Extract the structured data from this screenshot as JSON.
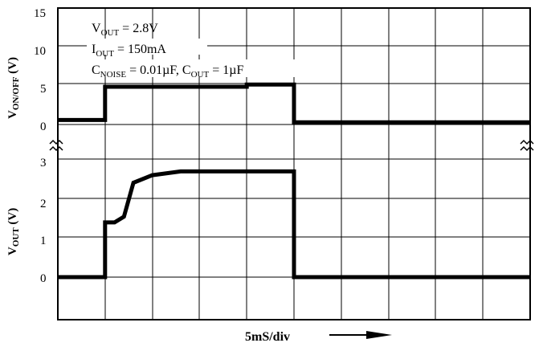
{
  "chart_data": [
    {
      "type": "line",
      "panel": "top",
      "title": "",
      "ylabel": {
        "main": "V",
        "sub": "ON/OFF",
        "unit": " (V)"
      },
      "yticks": [
        "15",
        "10",
        "5",
        "0"
      ],
      "ylim": [
        0,
        15
      ],
      "annotations": [
        {
          "main": "V",
          "sub": "OUT",
          "rest": " = 2.8V"
        },
        {
          "main": "I",
          "sub": "OUT",
          "rest": " = 150mA"
        },
        {
          "main": "C",
          "sub": "NOISE",
          "rest": " = 0.01µF, C",
          "sub2": "OUT",
          "rest2": " = 1µF"
        }
      ],
      "series": [
        {
          "x": [
            0,
            10,
            10,
            40,
            40,
            50,
            50,
            100
          ],
          "y": [
            0.6,
            0.6,
            5,
            5,
            5.3,
            5.3,
            0.3,
            0.3
          ]
        }
      ]
    },
    {
      "type": "line",
      "panel": "bottom",
      "title": "",
      "ylabel": {
        "main": "V",
        "sub": "OUT",
        "unit": " (V)"
      },
      "yticks": [
        "3",
        "2",
        "1",
        "0"
      ],
      "ylim": [
        -1,
        3.3
      ],
      "xlabel": "5mS/div",
      "series": [
        {
          "x": [
            0,
            10,
            10,
            12,
            14,
            16,
            20,
            26,
            50,
            50,
            100
          ],
          "y": [
            0,
            0,
            1.45,
            1.45,
            1.6,
            2.5,
            2.7,
            2.8,
            2.8,
            0,
            0
          ]
        }
      ]
    }
  ]
}
